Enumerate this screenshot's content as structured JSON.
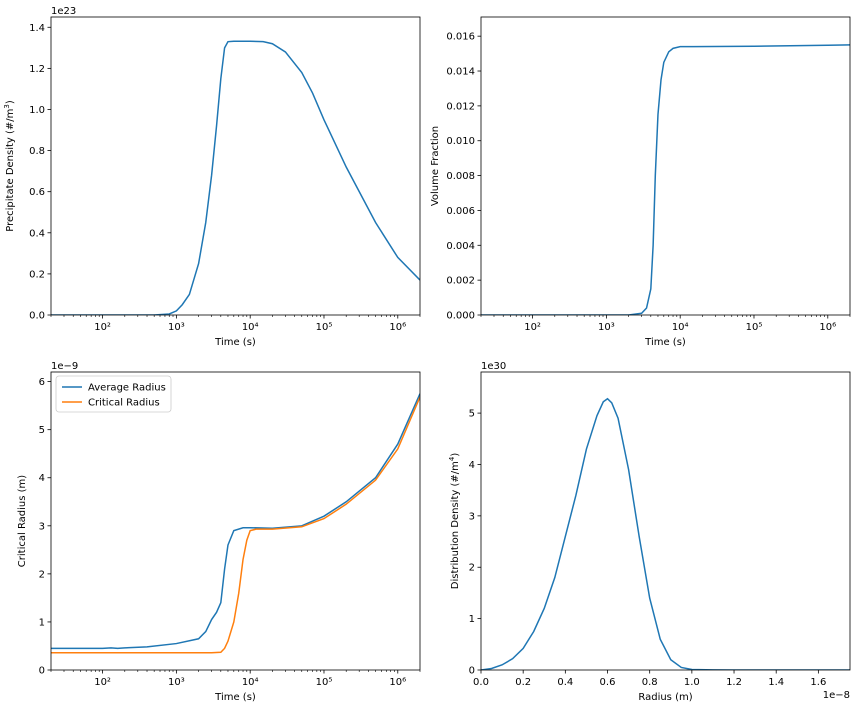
{
  "chart_data": [
    {
      "type": "line",
      "xscale": "log",
      "xlabel": "Time (s)",
      "ylabel": "Precipitate Density (#/m³)",
      "ylabel_html": "Precipitate Density (#/m<tspan baseline-shift='super' font-size='7'>3</tspan>)",
      "offset_text": "1e23",
      "xlim": [
        20,
        2000000
      ],
      "ylim": [
        0,
        1.45
      ],
      "xticks": [
        {
          "v": 100,
          "label": "10²"
        },
        {
          "v": 1000,
          "label": "10³"
        },
        {
          "v": 10000,
          "label": "10⁴"
        },
        {
          "v": 100000,
          "label": "10⁵"
        },
        {
          "v": 1000000,
          "label": "10⁶"
        }
      ],
      "yticks": [
        {
          "v": 0,
          "label": "0.0"
        },
        {
          "v": 0.2,
          "label": "0.2"
        },
        {
          "v": 0.4,
          "label": "0.4"
        },
        {
          "v": 0.6,
          "label": "0.6"
        },
        {
          "v": 0.8,
          "label": "0.8"
        },
        {
          "v": 1.0,
          "label": "1.0"
        },
        {
          "v": 1.2,
          "label": "1.2"
        },
        {
          "v": 1.4,
          "label": "1.4"
        }
      ],
      "series": [
        {
          "color": "#1f77b4",
          "x": [
            20,
            500,
            800,
            1000,
            1200,
            1500,
            2000,
            2500,
            3000,
            3500,
            4000,
            4500,
            5000,
            6000,
            10000,
            15000,
            20000,
            30000,
            50000,
            70000,
            100000,
            200000,
            500000,
            1000000,
            2000000
          ],
          "y": [
            0,
            0,
            0.005,
            0.02,
            0.05,
            0.1,
            0.25,
            0.45,
            0.68,
            0.92,
            1.15,
            1.3,
            1.33,
            1.332,
            1.332,
            1.33,
            1.32,
            1.28,
            1.18,
            1.08,
            0.95,
            0.72,
            0.45,
            0.28,
            0.17
          ]
        }
      ]
    },
    {
      "type": "line",
      "xscale": "log",
      "xlabel": "Time (s)",
      "ylabel": "Volume Fraction",
      "ylabel_html": "Volume Fraction",
      "offset_text": "",
      "xlim": [
        20,
        2000000
      ],
      "ylim": [
        0,
        0.0171
      ],
      "xticks": [
        {
          "v": 100,
          "label": "10²"
        },
        {
          "v": 1000,
          "label": "10³"
        },
        {
          "v": 10000,
          "label": "10⁴"
        },
        {
          "v": 100000,
          "label": "10⁵"
        },
        {
          "v": 1000000,
          "label": "10⁶"
        }
      ],
      "yticks": [
        {
          "v": 0,
          "label": "0.000"
        },
        {
          "v": 0.002,
          "label": "0.002"
        },
        {
          "v": 0.004,
          "label": "0.004"
        },
        {
          "v": 0.006,
          "label": "0.006"
        },
        {
          "v": 0.008,
          "label": "0.008"
        },
        {
          "v": 0.01,
          "label": "0.010"
        },
        {
          "v": 0.012,
          "label": "0.012"
        },
        {
          "v": 0.014,
          "label": "0.014"
        },
        {
          "v": 0.016,
          "label": "0.016"
        }
      ],
      "series": [
        {
          "color": "#1f77b4",
          "x": [
            20,
            2000,
            3000,
            3500,
            4000,
            4300,
            4600,
            5000,
            5500,
            6000,
            7000,
            8000,
            10000,
            15000,
            100000,
            1000000,
            2000000
          ],
          "y": [
            0,
            0,
            0.0001,
            0.0004,
            0.0015,
            0.004,
            0.008,
            0.0115,
            0.0135,
            0.0145,
            0.0151,
            0.0153,
            0.0154,
            0.0154,
            0.01542,
            0.01548,
            0.0155
          ]
        }
      ]
    },
    {
      "type": "line",
      "xscale": "log",
      "xlabel": "Time (s)",
      "ylabel": "Critical Radius (m)",
      "ylabel_html": "Critical Radius (m)",
      "offset_text": "1e−9",
      "xlim": [
        20,
        2000000
      ],
      "ylim": [
        0,
        6.2
      ],
      "xticks": [
        {
          "v": 100,
          "label": "10²"
        },
        {
          "v": 1000,
          "label": "10³"
        },
        {
          "v": 10000,
          "label": "10⁴"
        },
        {
          "v": 100000,
          "label": "10⁵"
        },
        {
          "v": 1000000,
          "label": "10⁶"
        }
      ],
      "yticks": [
        {
          "v": 0,
          "label": "0"
        },
        {
          "v": 1,
          "label": "1"
        },
        {
          "v": 2,
          "label": "2"
        },
        {
          "v": 3,
          "label": "3"
        },
        {
          "v": 4,
          "label": "4"
        },
        {
          "v": 5,
          "label": "5"
        },
        {
          "v": 6,
          "label": "6"
        }
      ],
      "legend": "top-left",
      "series": [
        {
          "name": "Average Radius",
          "color": "#1f77b4",
          "x": [
            20,
            100,
            130,
            160,
            200,
            400,
            1000,
            2000,
            2500,
            3000,
            3500,
            4000,
            4500,
            5000,
            6000,
            8000,
            10000,
            20000,
            50000,
            100000,
            200000,
            500000,
            1000000,
            2000000
          ],
          "y": [
            0.45,
            0.45,
            0.46,
            0.45,
            0.46,
            0.48,
            0.55,
            0.65,
            0.8,
            1.05,
            1.2,
            1.4,
            2.1,
            2.6,
            2.9,
            2.96,
            2.96,
            2.95,
            3.0,
            3.2,
            3.5,
            4.0,
            4.7,
            5.75
          ]
        },
        {
          "name": "Critical Radius",
          "color": "#ff7f0e",
          "x": [
            20,
            1000,
            3000,
            4000,
            4500,
            5000,
            6000,
            7000,
            8000,
            9000,
            10000,
            12000,
            20000,
            50000,
            100000,
            200000,
            500000,
            1000000,
            2000000
          ],
          "y": [
            0.36,
            0.36,
            0.36,
            0.37,
            0.45,
            0.6,
            1.0,
            1.6,
            2.3,
            2.7,
            2.9,
            2.93,
            2.93,
            2.98,
            3.15,
            3.45,
            3.95,
            4.6,
            5.68
          ]
        }
      ]
    },
    {
      "type": "line",
      "xscale": "linear",
      "xlabel": "Radius (m)",
      "ylabel": "Distribution Density (#/m⁴)",
      "ylabel_html": "Distribution Density (#/m<tspan baseline-shift='super' font-size='7'>4</tspan>)",
      "offset_text": "1e30",
      "xoffset_text": "1e−8",
      "xlim": [
        0,
        1.75
      ],
      "ylim": [
        0,
        5.8
      ],
      "xticks": [
        {
          "v": 0,
          "label": "0.0"
        },
        {
          "v": 0.2,
          "label": "0.2"
        },
        {
          "v": 0.4,
          "label": "0.4"
        },
        {
          "v": 0.6,
          "label": "0.6"
        },
        {
          "v": 0.8,
          "label": "0.8"
        },
        {
          "v": 1.0,
          "label": "1.0"
        },
        {
          "v": 1.2,
          "label": "1.2"
        },
        {
          "v": 1.4,
          "label": "1.4"
        },
        {
          "v": 1.6,
          "label": "1.6"
        }
      ],
      "yticks": [
        {
          "v": 0,
          "label": "0"
        },
        {
          "v": 1,
          "label": "1"
        },
        {
          "v": 2,
          "label": "2"
        },
        {
          "v": 3,
          "label": "3"
        },
        {
          "v": 4,
          "label": "4"
        },
        {
          "v": 5,
          "label": "5"
        }
      ],
      "series": [
        {
          "color": "#1f77b4",
          "x": [
            0,
            0.05,
            0.1,
            0.15,
            0.2,
            0.25,
            0.3,
            0.35,
            0.4,
            0.45,
            0.5,
            0.55,
            0.58,
            0.6,
            0.62,
            0.65,
            0.7,
            0.75,
            0.8,
            0.85,
            0.9,
            0.95,
            1.0,
            1.1,
            1.2,
            1.4,
            1.6,
            1.75
          ],
          "y": [
            0,
            0.03,
            0.1,
            0.22,
            0.42,
            0.75,
            1.2,
            1.8,
            2.6,
            3.4,
            4.3,
            4.95,
            5.22,
            5.28,
            5.2,
            4.9,
            3.9,
            2.6,
            1.4,
            0.6,
            0.2,
            0.05,
            0.01,
            0.003,
            0.001,
            0,
            0,
            0
          ]
        }
      ]
    }
  ]
}
